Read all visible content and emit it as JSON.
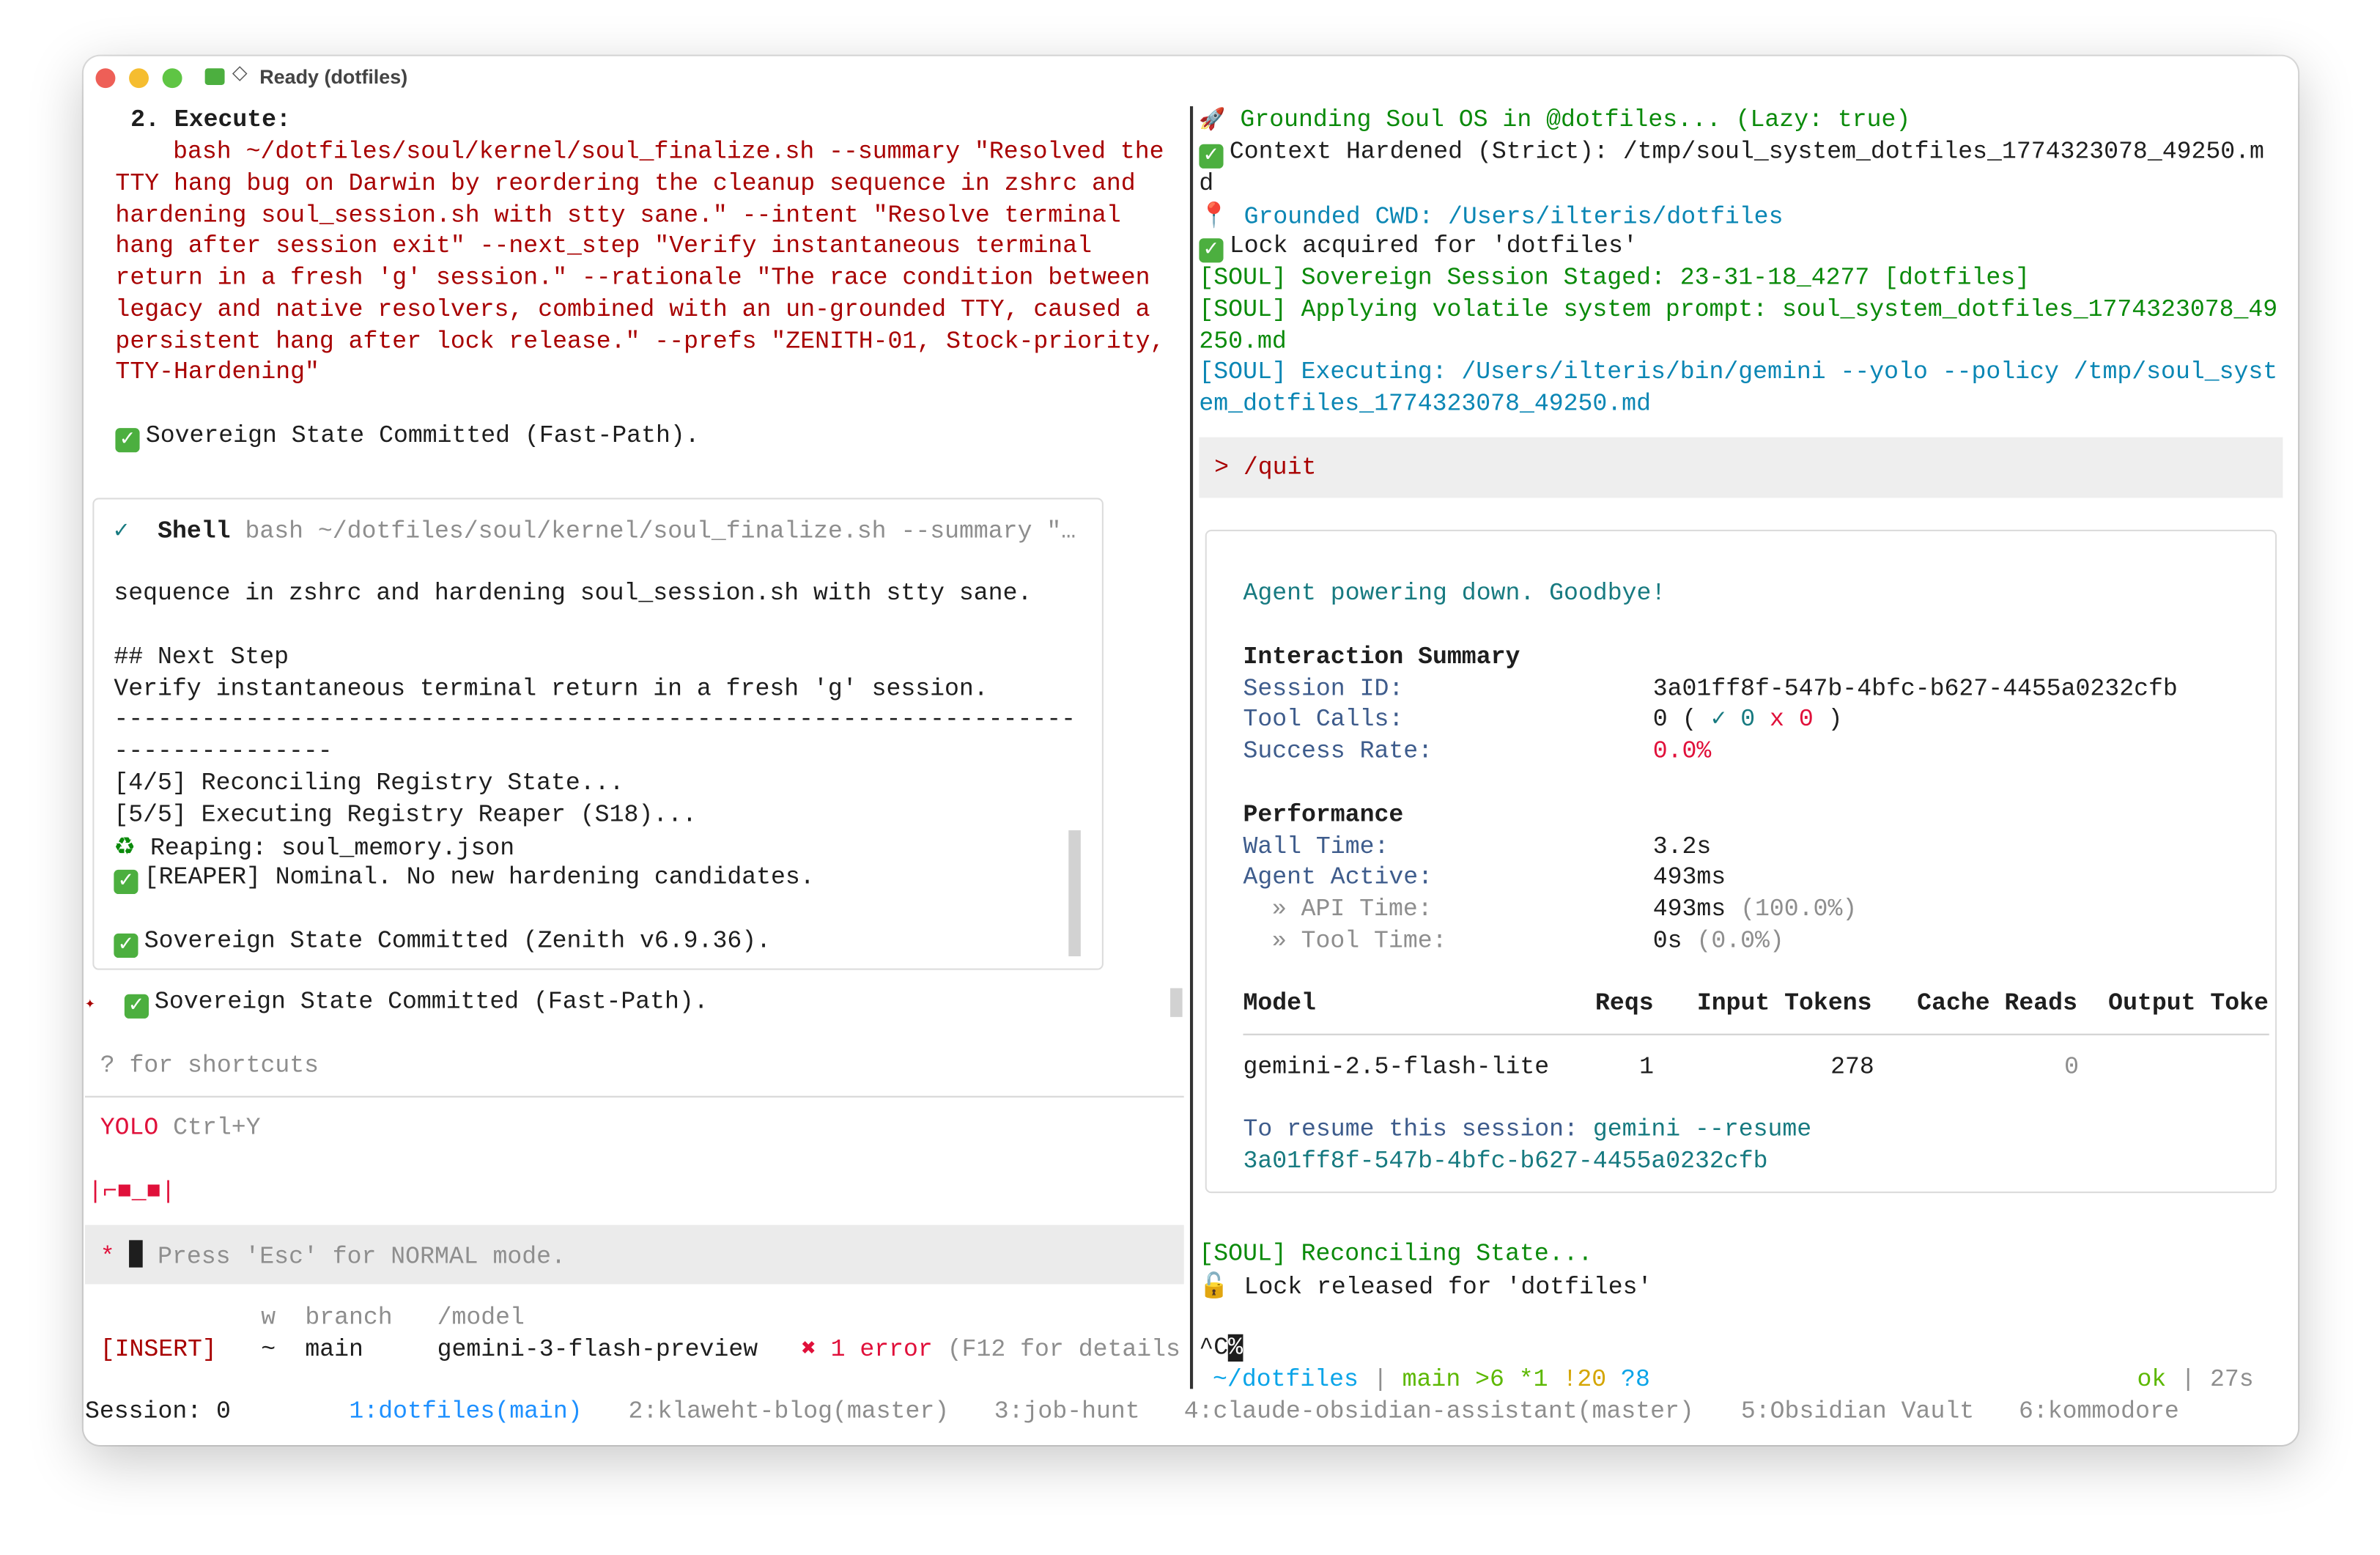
{
  "window": {
    "title": "Ready (dotfiles)",
    "title_icons": [
      "folder-icon",
      "diamond-icon"
    ]
  },
  "left": {
    "execute_heading": "2. Execute:",
    "command_lines": [
      "bash ~/dotfiles/soul/kernel/soul_finalize.sh --summary \"Resolved the",
      "TTY hang bug on Darwin by reordering the cleanup sequence in zshrc and",
      "hardening soul_session.sh with stty sane.\" --intent \"Resolve terminal",
      "hang after session exit\" --next_step \"Verify instantaneous terminal",
      "return in a fresh 'g' session.\" --rationale \"The race condition between",
      "legacy and native resolvers, combined with an un-grounded TTY, caused a",
      "persistent hang after lock release.\" --prefs \"ZENITH-01, Stock-priority,",
      "TTY-Hardening\""
    ],
    "committed_1": "Sovereign State Committed (Fast-Path).",
    "shell_box": {
      "check": "✓",
      "tool": "Shell",
      "command": "bash ~/dotfiles/soul/kernel/soul_finalize.sh --summary \"…",
      "lines": [
        "sequence in zshrc and hardening soul_session.sh with stty sane.",
        "## Next Step",
        "Verify instantaneous terminal return in a fresh 'g' session.",
        "------------------------------------------------------------------",
        "---------------",
        "[4/5] Reconciling Registry State...",
        "[5/5] Executing Registry Reaper (S18)..."
      ],
      "reaping": " Reaping: soul_memory.json",
      "reaper": "[REAPER] Nominal. No new hardening candidates.",
      "committed": "Sovereign State Committed (Zenith v6.9.36)."
    },
    "committed_2": "Sovereign State Committed (Fast-Path).",
    "shortcuts_hint": "? for shortcuts",
    "yolo": "YOLO",
    "yolo_key": "Ctrl+Y",
    "mascot": "|⌐■_■|",
    "input_marker": "*",
    "input_placeholder": "Press 'Esc' for NORMAL mode.",
    "status_headers": {
      "w": "w",
      "branch": "branch",
      "model": "/model"
    },
    "status": {
      "mode": "[INSERT]",
      "w": "~",
      "branch": "main",
      "model": "gemini-3-flash-preview",
      "error_icon": "✖",
      "error": "1 error",
      "error_hint": "(F12 for details"
    }
  },
  "right": {
    "lines": [
      {
        "icon": "🚀",
        "text": "Grounding Soul OS in @dotfiles... (Lazy: true)"
      },
      {
        "icon": "✓",
        "text": "Context Hardened (Strict): /tmp/soul_system_dotfiles_1774323078_49250.m"
      },
      {
        "text": "d"
      },
      {
        "icon": "📍",
        "text": "Grounded CWD: /Users/ilteris/dotfiles"
      },
      {
        "icon": "✓",
        "text": "Lock acquired for 'dotfiles'"
      },
      {
        "text": "[SOUL] Sovereign Session Staged: 23-31-18_4277 [dotfiles]"
      },
      {
        "text": "[SOUL] Applying volatile system prompt: soul_system_dotfiles_1774323078_49"
      },
      {
        "text": "250.md"
      },
      {
        "text": "[SOUL] Executing: /Users/ilteris/bin/gemini --yolo --policy /tmp/soul_syst"
      },
      {
        "text": "em_dotfiles_1774323078_49250.md"
      }
    ],
    "prompt_input": "> /quit",
    "summary": {
      "goodbye": "Agent powering down. Goodbye!",
      "interaction_heading": "Interaction Summary",
      "session_id_label": "Session ID:",
      "session_id": "3a01ff8f-547b-4bfc-b627-4455a0232cfb",
      "tool_calls_label": "Tool Calls:",
      "tool_calls_total": "0 (",
      "tool_calls_ok_icon": "✓",
      "tool_calls_ok": "0",
      "tool_calls_fail_icon": "x",
      "tool_calls_fail": "0",
      "tool_calls_close": ")",
      "success_rate_label": "Success Rate:",
      "success_rate": "0.0%",
      "performance_heading": "Performance",
      "wall_time_label": "Wall Time:",
      "wall_time": "3.2s",
      "agent_active_label": "Agent Active:",
      "agent_active": "493ms",
      "api_time_label": "» API Time:",
      "api_time": "493ms",
      "api_time_pct": "(100.0%)",
      "tool_time_label": "» Tool Time:",
      "tool_time": "0s",
      "tool_time_pct": "(0.0%)",
      "table_headers": [
        "Model",
        "Reqs",
        "Input Tokens",
        "Cache Reads",
        "Output Toke"
      ],
      "table_row": [
        "gemini-2.5-flash-lite",
        "1",
        "278",
        "0"
      ],
      "resume_label": "To resume this session:",
      "resume_cmd": "gemini --resume",
      "resume_id": "3a01ff8f-547b-4bfc-b627-4455a0232cfb"
    },
    "reconciling": "[SOUL] Reconciling State...",
    "lock_released": "Lock released for 'dotfiles'",
    "ctrl_c": "^C",
    "percent": "%",
    "prompt": {
      "cwd": "~/dotfiles",
      "sep": "|",
      "branch": "main",
      "ahead": ">6",
      "staged": "*1",
      "modified": "!20",
      "untracked": "?8",
      "status": "ok",
      "duration": "27s"
    }
  },
  "tmux": {
    "session": "Session: 0",
    "windows": [
      "1:dotfiles(main)",
      "2:klaweht-blog(master)",
      "3:job-hunt",
      "4:claude-obsidian-assistant(master)",
      "5:Obsidian Vault",
      "6:kommodore"
    ],
    "active_index": 0
  },
  "colors": {
    "command_red": "#a80000",
    "green": "#0a8a0a",
    "blue": "#0a86b4",
    "error": "#e0103a",
    "active_tab": "#1e90ff"
  }
}
